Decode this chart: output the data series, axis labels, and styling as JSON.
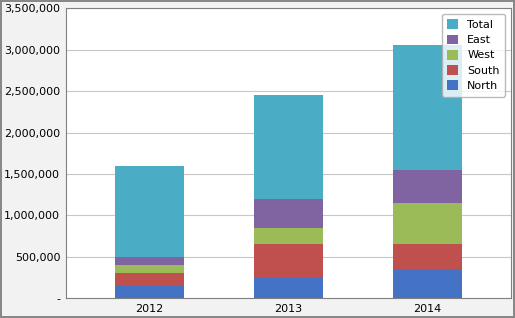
{
  "years": [
    "2012",
    "2013",
    "2014"
  ],
  "series": {
    "North": [
      150000,
      250000,
      350000
    ],
    "South": [
      150000,
      400000,
      300000
    ],
    "West": [
      100000,
      200000,
      500000
    ],
    "East": [
      100000,
      350000,
      400000
    ],
    "Total": [
      1100000,
      1250000,
      1510000
    ]
  },
  "colors": {
    "North": "#4472C4",
    "South": "#C0504D",
    "West": "#9BBB59",
    "East": "#8064A2",
    "Total": "#4BACC6"
  },
  "legend_order": [
    "Total",
    "East",
    "West",
    "South",
    "North"
  ],
  "ylim": [
    0,
    3500000
  ],
  "yticks": [
    0,
    500000,
    1000000,
    1500000,
    2000000,
    2500000,
    3000000,
    3500000
  ],
  "ytick_labels": [
    "-",
    "500,000",
    "1,000,000",
    "1,500,000",
    "2,000,000",
    "2,500,000",
    "3,000,000",
    "3,500,000"
  ],
  "bg_color": "#F2F2F2",
  "plot_bg_color": "#FFFFFF",
  "grid_color": "#C8C8C8",
  "bar_width": 0.5,
  "legend_fontsize": 8,
  "tick_fontsize": 8,
  "frame_color": "#808080"
}
